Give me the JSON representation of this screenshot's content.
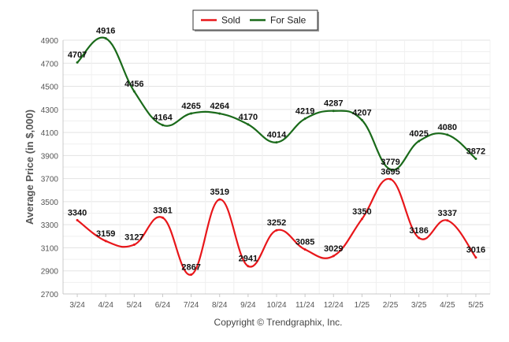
{
  "chart_data": {
    "type": "line",
    "categories": [
      "3/24",
      "4/24",
      "5/24",
      "6/24",
      "7/24",
      "8/24",
      "9/24",
      "10/24",
      "11/24",
      "12/24",
      "1/25",
      "2/25",
      "3/25",
      "4/25",
      "5/25"
    ],
    "series": [
      {
        "name": "Sold",
        "color": "#e8161a",
        "values": [
          3340,
          3159,
          3127,
          3361,
          2867,
          3519,
          2941,
          3252,
          3085,
          3029,
          3350,
          3695,
          3186,
          3337,
          3016
        ]
      },
      {
        "name": "For Sale",
        "color": "#1a6a1a",
        "values": [
          4707,
          4916,
          4456,
          4164,
          4265,
          4264,
          4170,
          4014,
          4219,
          4287,
          4207,
          3779,
          4025,
          4080,
          3872
        ]
      }
    ],
    "ylabel": "Average Price (in $,000)",
    "xlabel": "",
    "ylim": [
      2700,
      4900
    ],
    "yticks": [
      2700,
      2900,
      3100,
      3300,
      3500,
      3700,
      3900,
      4100,
      4300,
      4500,
      4700,
      4900
    ],
    "grid": true,
    "legend_position": "top-center",
    "credit": "Copyright © Trendgraphix, Inc."
  }
}
